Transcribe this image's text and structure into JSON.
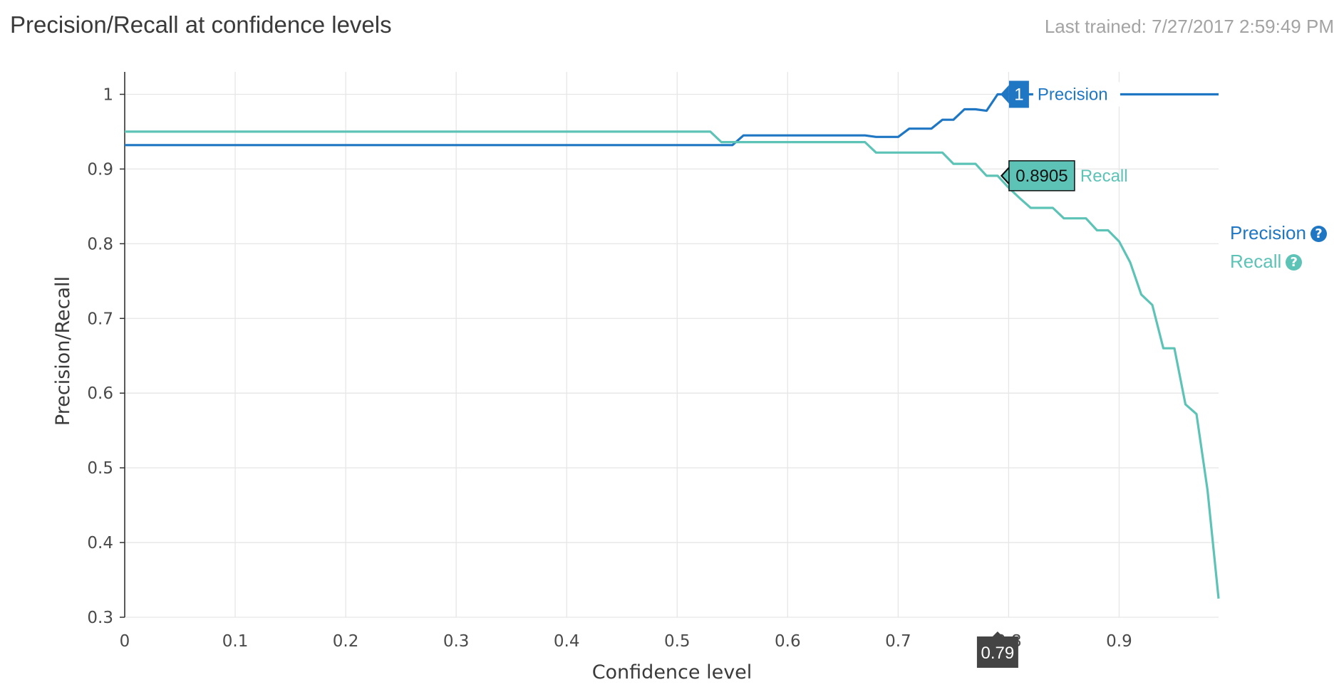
{
  "header": {
    "title": "Precision/Recall at confidence levels",
    "last_trained": "Last trained: 7/27/2017 2:59:49 PM"
  },
  "legend": {
    "items": [
      {
        "label": "Precision",
        "color": "#1f77c4",
        "icon": "help-circle-icon"
      },
      {
        "label": "Recall",
        "color": "#5cc3b6",
        "icon": "help-circle-icon"
      }
    ]
  },
  "hover": {
    "x_label": "0.79",
    "precision_value": "1",
    "precision_name": "Precision",
    "recall_value": "0.8905",
    "recall_name": "Recall"
  },
  "chart_data": {
    "type": "line",
    "title": "Precision/Recall at confidence levels",
    "xlabel": "Confidence level",
    "ylabel": "Precision/Recall",
    "xlim": [
      0,
      0.99
    ],
    "ylim": [
      0.3,
      1.03
    ],
    "x_ticks": [
      "0",
      "0.1",
      "0.2",
      "0.3",
      "0.4",
      "0.5",
      "0.6",
      "0.7",
      "0.8",
      "0.9"
    ],
    "y_ticks": [
      "0.3",
      "0.4",
      "0.5",
      "0.6",
      "0.7",
      "0.8",
      "0.9",
      "1"
    ],
    "grid": true,
    "legend_position": "right",
    "hover_x": 0.79,
    "series": [
      {
        "name": "Precision",
        "color": "#1f77c4",
        "points": [
          [
            0,
            0.932
          ],
          [
            0.55,
            0.932
          ],
          [
            0.56,
            0.945
          ],
          [
            0.67,
            0.945
          ],
          [
            0.68,
            0.943
          ],
          [
            0.7,
            0.943
          ],
          [
            0.71,
            0.954
          ],
          [
            0.73,
            0.954
          ],
          [
            0.74,
            0.966
          ],
          [
            0.75,
            0.966
          ],
          [
            0.76,
            0.98
          ],
          [
            0.77,
            0.98
          ],
          [
            0.78,
            0.978
          ],
          [
            0.79,
            1.0
          ],
          [
            0.99,
            1.0
          ]
        ]
      },
      {
        "name": "Recall",
        "color": "#5cc3b6",
        "points": [
          [
            0,
            0.95
          ],
          [
            0.53,
            0.95
          ],
          [
            0.54,
            0.936
          ],
          [
            0.67,
            0.936
          ],
          [
            0.68,
            0.922
          ],
          [
            0.74,
            0.922
          ],
          [
            0.75,
            0.907
          ],
          [
            0.77,
            0.907
          ],
          [
            0.78,
            0.891
          ],
          [
            0.79,
            0.891
          ],
          [
            0.8,
            0.875
          ],
          [
            0.81,
            0.861
          ],
          [
            0.82,
            0.848
          ],
          [
            0.84,
            0.848
          ],
          [
            0.85,
            0.834
          ],
          [
            0.87,
            0.834
          ],
          [
            0.88,
            0.818
          ],
          [
            0.89,
            0.818
          ],
          [
            0.9,
            0.803
          ],
          [
            0.91,
            0.775
          ],
          [
            0.92,
            0.732
          ],
          [
            0.93,
            0.718
          ],
          [
            0.94,
            0.66
          ],
          [
            0.95,
            0.66
          ],
          [
            0.96,
            0.585
          ],
          [
            0.97,
            0.572
          ],
          [
            0.98,
            0.47
          ],
          [
            0.99,
            0.325
          ]
        ]
      }
    ]
  }
}
